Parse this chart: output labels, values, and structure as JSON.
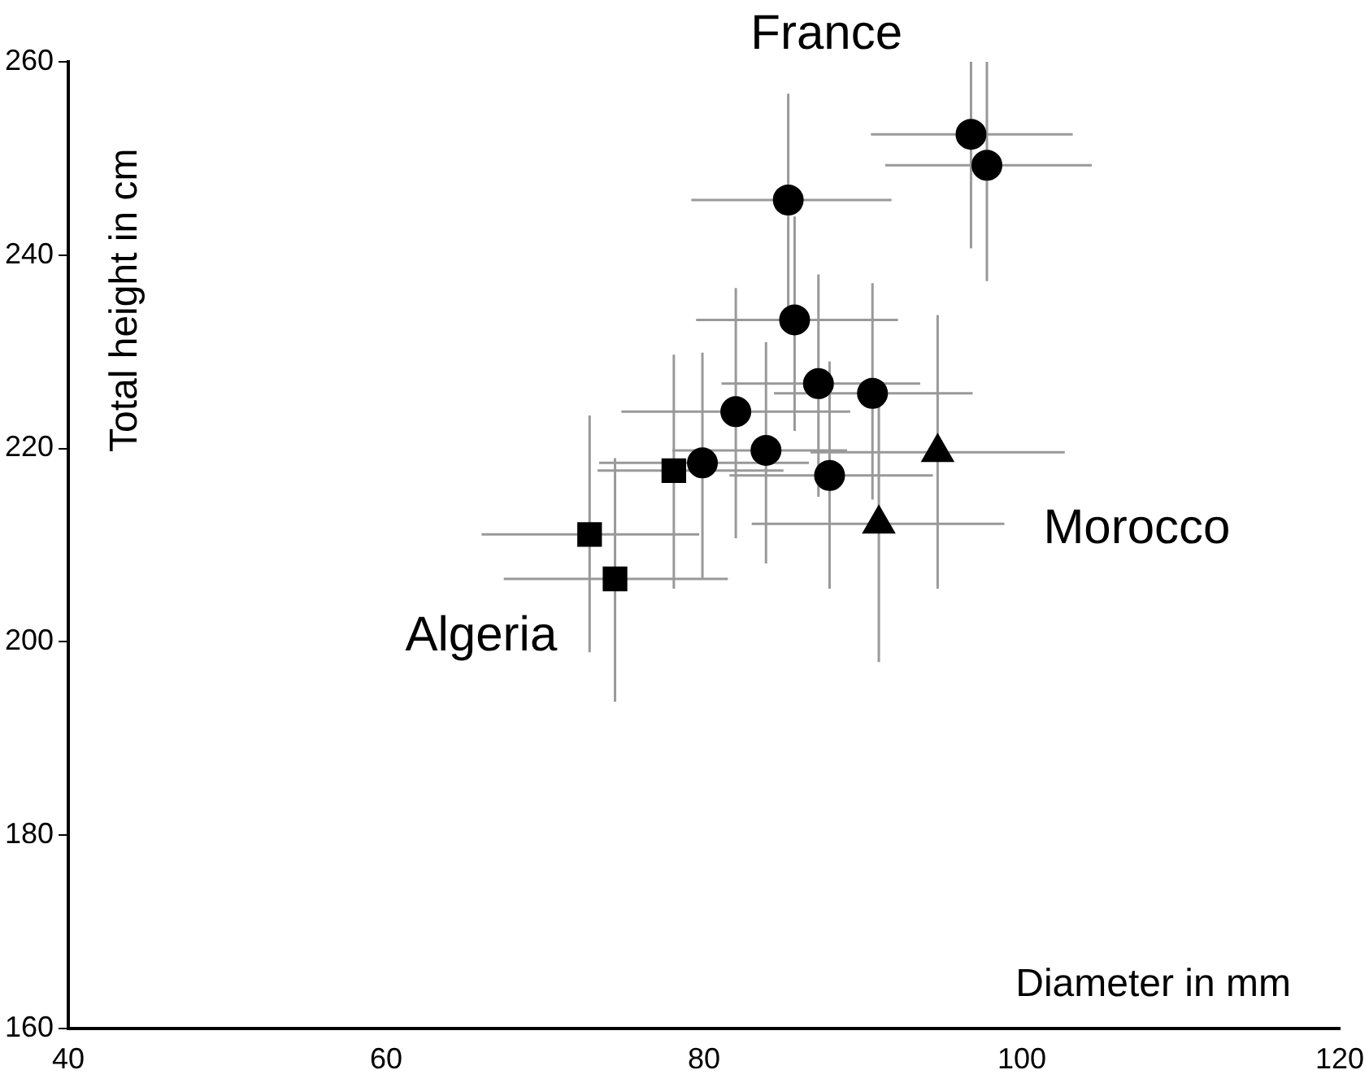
{
  "chart_data": {
    "type": "scatter",
    "xlabel": "Diameter in mm",
    "ylabel": "Total height in cm",
    "xlim": [
      40,
      120
    ],
    "ylim": [
      160,
      260
    ],
    "xticks": [
      40,
      60,
      80,
      100,
      120
    ],
    "yticks": [
      160,
      180,
      200,
      220,
      240,
      260
    ],
    "grid": false,
    "legend": false,
    "series": [
      {
        "name": "France",
        "color": "#000000",
        "marker": "circle",
        "x": [
          96.8,
          97.8,
          85.3,
          85.7,
          87.2,
          90.6,
          82.0,
          79.9,
          83.9,
          87.9
        ],
        "values": [
          252.5,
          249.3,
          245.7,
          233.3,
          226.7,
          225.7,
          223.8,
          218.5,
          219.8,
          217.2
        ],
        "xerrors": [
          [
            90.5,
            103.2
          ],
          [
            91.4,
            104.4
          ],
          [
            79.2,
            91.8
          ],
          [
            79.5,
            92.2
          ],
          [
            81.1,
            93.6
          ],
          [
            84.4,
            96.9
          ],
          [
            74.8,
            89.2
          ],
          [
            73.4,
            86.6
          ],
          [
            78.0,
            89.0
          ],
          [
            81.6,
            94.4
          ]
        ],
        "errors": [
          [
            240.7,
            260
          ],
          [
            237.3,
            260
          ],
          [
            232,
            256.7
          ],
          [
            221.8,
            244
          ],
          [
            215,
            238
          ],
          [
            214.7,
            237.1
          ],
          [
            210.7,
            236.6
          ],
          [
            206.5,
            229.9
          ],
          [
            208.1,
            231
          ],
          [
            205.5,
            229
          ]
        ]
      },
      {
        "name": "Algeria",
        "color": "#000000",
        "marker": "square",
        "x": [
          78.1,
          72.8,
          74.4
        ],
        "values": [
          217.7,
          211.1,
          206.5
        ],
        "xerrors": [
          [
            73.3,
            85.0
          ],
          [
            66.0,
            79.7
          ],
          [
            67.4,
            81.5
          ]
        ],
        "errors": [
          [
            205.5,
            229.7
          ],
          [
            198.9,
            223.4
          ],
          [
            193.8,
            219
          ]
        ]
      },
      {
        "name": "Morocco",
        "color": "#000000",
        "marker": "triangle",
        "x": [
          91.0,
          94.7
        ],
        "values": [
          212.2,
          219.6
        ],
        "xerrors": [
          [
            83.0,
            98.9
          ],
          [
            86.7,
            102.7
          ]
        ],
        "errors": [
          [
            197.9,
            225
          ],
          [
            205.5,
            233.8
          ]
        ]
      }
    ]
  }
}
